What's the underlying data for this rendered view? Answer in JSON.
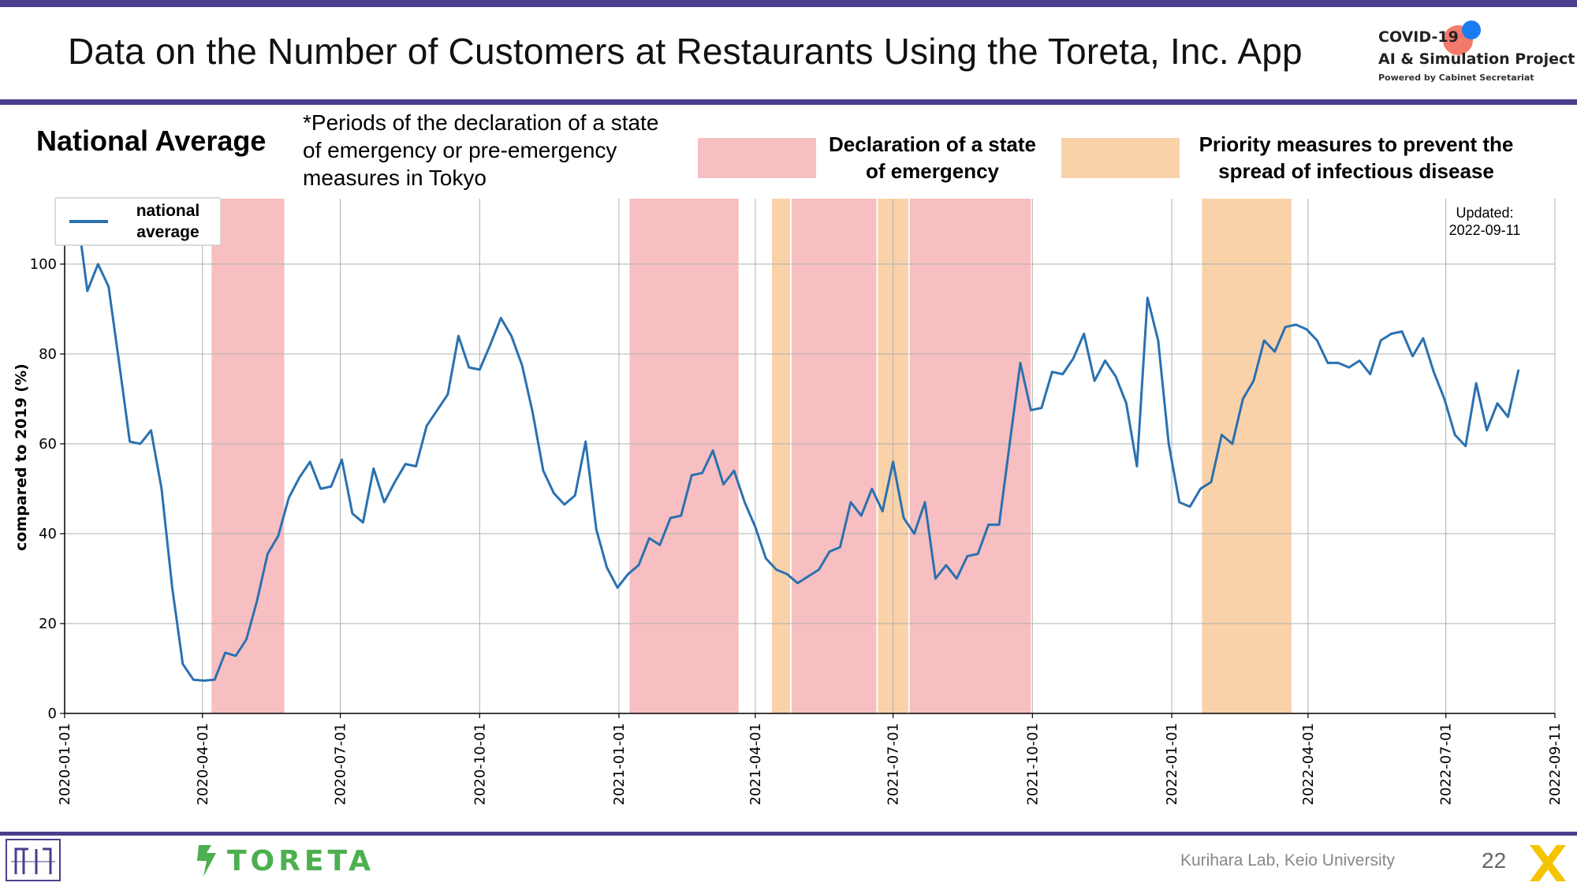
{
  "header": {
    "title": "Data on the Number of Customers at Restaurants Using the Toreta, Inc. App",
    "logo_line1": "COVID-19",
    "logo_line2": "AI & Simulation Project",
    "logo_line3": "Powered by Cabinet Secretariat"
  },
  "legend_header": {
    "section_title": "National Average",
    "note": "*Periods of the declaration of a state of emergency or pre-emergency measures in Tokyo",
    "emergency_label": "Declaration of a state of emergency",
    "priority_label": "Priority measures to prevent the spread of infectious disease",
    "emergency_color": "#f7bfc1",
    "priority_color": "#f9d2a9"
  },
  "chart_data": {
    "type": "line",
    "title": "",
    "xlabel": "",
    "ylabel": "compared to 2019 (%)",
    "ylim": [
      0,
      100
    ],
    "yticks": [
      0,
      20,
      40,
      60,
      80,
      100
    ],
    "xlim": [
      "2020-01-01",
      "2022-09-11"
    ],
    "xticks": [
      "2020-01-01",
      "2020-04-01",
      "2020-07-01",
      "2020-10-01",
      "2021-01-01",
      "2021-04-01",
      "2021-07-01",
      "2021-10-01",
      "2022-01-01",
      "2022-04-01",
      "2022-07-01",
      "2022-09-11"
    ],
    "grid": true,
    "legend": {
      "placement": "top-left",
      "line1": "national",
      "line2": "average"
    },
    "updated_line1": "Updated:",
    "updated_line2": "2022-09-11",
    "series": [
      {
        "name": "national average",
        "color": "#2a71b0",
        "points": [
          [
            "2020-01-09",
            112
          ],
          [
            "2020-01-16",
            94
          ],
          [
            "2020-01-23",
            100
          ],
          [
            "2020-01-30",
            95
          ],
          [
            "2020-02-06",
            78
          ],
          [
            "2020-02-13",
            60.5
          ],
          [
            "2020-02-20",
            60
          ],
          [
            "2020-02-27",
            63
          ],
          [
            "2020-03-05",
            50
          ],
          [
            "2020-03-12",
            28
          ],
          [
            "2020-03-19",
            11
          ],
          [
            "2020-03-26",
            7.5
          ],
          [
            "2020-04-02",
            7.3
          ],
          [
            "2020-04-09",
            7.5
          ],
          [
            "2020-04-16",
            13.5
          ],
          [
            "2020-04-23",
            12.8
          ],
          [
            "2020-04-30",
            16.5
          ],
          [
            "2020-05-07",
            25
          ],
          [
            "2020-05-14",
            35.5
          ],
          [
            "2020-05-21",
            39.5
          ],
          [
            "2020-05-28",
            48
          ],
          [
            "2020-06-04",
            52.5
          ],
          [
            "2020-06-11",
            56
          ],
          [
            "2020-06-18",
            50
          ],
          [
            "2020-06-25",
            50.5
          ],
          [
            "2020-07-02",
            56.5
          ],
          [
            "2020-07-09",
            44.5
          ],
          [
            "2020-07-16",
            42.5
          ],
          [
            "2020-07-23",
            54.5
          ],
          [
            "2020-07-30",
            47
          ],
          [
            "2020-08-06",
            51.5
          ],
          [
            "2020-08-13",
            55.5
          ],
          [
            "2020-08-20",
            55
          ],
          [
            "2020-08-27",
            64
          ],
          [
            "2020-09-03",
            67.5
          ],
          [
            "2020-09-10",
            71
          ],
          [
            "2020-09-17",
            84
          ],
          [
            "2020-09-24",
            77
          ],
          [
            "2020-10-01",
            76.5
          ],
          [
            "2020-10-08",
            82
          ],
          [
            "2020-10-15",
            88
          ],
          [
            "2020-10-22",
            84
          ],
          [
            "2020-10-29",
            77.5
          ],
          [
            "2020-11-05",
            67
          ],
          [
            "2020-11-12",
            54
          ],
          [
            "2020-11-19",
            49
          ],
          [
            "2020-11-26",
            46.5
          ],
          [
            "2020-12-03",
            48.5
          ],
          [
            "2020-12-10",
            60.5
          ],
          [
            "2020-12-17",
            41
          ],
          [
            "2020-12-24",
            32.5
          ],
          [
            "2020-12-31",
            28
          ],
          [
            "2021-01-07",
            31
          ],
          [
            "2021-01-14",
            33
          ],
          [
            "2021-01-21",
            39
          ],
          [
            "2021-01-28",
            37.5
          ],
          [
            "2021-02-04",
            43.5
          ],
          [
            "2021-02-11",
            44
          ],
          [
            "2021-02-18",
            53
          ],
          [
            "2021-02-25",
            53.5
          ],
          [
            "2021-03-04",
            58.5
          ],
          [
            "2021-03-11",
            51
          ],
          [
            "2021-03-18",
            54
          ],
          [
            "2021-03-25",
            47
          ],
          [
            "2021-04-01",
            41.5
          ],
          [
            "2021-04-08",
            34.5
          ],
          [
            "2021-04-15",
            32
          ],
          [
            "2021-04-22",
            31
          ],
          [
            "2021-04-29",
            29
          ],
          [
            "2021-05-06",
            30.5
          ],
          [
            "2021-05-13",
            32
          ],
          [
            "2021-05-20",
            36
          ],
          [
            "2021-05-27",
            37
          ],
          [
            "2021-06-03",
            47
          ],
          [
            "2021-06-10",
            44
          ],
          [
            "2021-06-17",
            50
          ],
          [
            "2021-06-24",
            45
          ],
          [
            "2021-07-01",
            56
          ],
          [
            "2021-07-08",
            43.5
          ],
          [
            "2021-07-15",
            40
          ],
          [
            "2021-07-22",
            47
          ],
          [
            "2021-07-29",
            30
          ],
          [
            "2021-08-05",
            33
          ],
          [
            "2021-08-12",
            30
          ],
          [
            "2021-08-19",
            35
          ],
          [
            "2021-08-26",
            35.5
          ],
          [
            "2021-09-02",
            42
          ],
          [
            "2021-09-09",
            42
          ],
          [
            "2021-09-16",
            60
          ],
          [
            "2021-09-23",
            78
          ],
          [
            "2021-09-30",
            67.5
          ],
          [
            "2021-10-07",
            68
          ],
          [
            "2021-10-14",
            76
          ],
          [
            "2021-10-21",
            75.5
          ],
          [
            "2021-10-28",
            79
          ],
          [
            "2021-11-04",
            84.5
          ],
          [
            "2021-11-11",
            74
          ],
          [
            "2021-11-18",
            78.5
          ],
          [
            "2021-11-25",
            75
          ],
          [
            "2021-12-02",
            69
          ],
          [
            "2021-12-09",
            55
          ],
          [
            "2021-12-16",
            92.5
          ],
          [
            "2021-12-23",
            83
          ],
          [
            "2021-12-30",
            60
          ],
          [
            "2022-01-06",
            47
          ],
          [
            "2022-01-13",
            46
          ],
          [
            "2022-01-20",
            50
          ],
          [
            "2022-01-27",
            51.5
          ],
          [
            "2022-02-03",
            62
          ],
          [
            "2022-02-10",
            60
          ],
          [
            "2022-02-17",
            70
          ],
          [
            "2022-02-24",
            74
          ],
          [
            "2022-03-03",
            83
          ],
          [
            "2022-03-10",
            80.5
          ],
          [
            "2022-03-17",
            86
          ],
          [
            "2022-03-24",
            86.5
          ],
          [
            "2022-03-31",
            85.5
          ],
          [
            "2022-04-07",
            83
          ],
          [
            "2022-04-14",
            78
          ],
          [
            "2022-04-21",
            78
          ],
          [
            "2022-04-28",
            77
          ],
          [
            "2022-05-05",
            78.5
          ],
          [
            "2022-05-12",
            75.5
          ],
          [
            "2022-05-19",
            83
          ],
          [
            "2022-05-26",
            84.5
          ],
          [
            "2022-06-02",
            85
          ],
          [
            "2022-06-09",
            79.5
          ],
          [
            "2022-06-16",
            83.5
          ],
          [
            "2022-06-23",
            76
          ],
          [
            "2022-06-30",
            70
          ],
          [
            "2022-07-07",
            62
          ],
          [
            "2022-07-14",
            59.5
          ],
          [
            "2022-07-21",
            73.5
          ],
          [
            "2022-07-28",
            63
          ],
          [
            "2022-08-04",
            69
          ],
          [
            "2022-08-11",
            66
          ],
          [
            "2022-08-18",
            76.5
          ]
        ]
      }
    ],
    "shaded_periods": [
      {
        "kind": "emergency",
        "start": "2020-04-07",
        "end": "2020-05-25"
      },
      {
        "kind": "emergency",
        "start": "2021-01-08",
        "end": "2021-03-21"
      },
      {
        "kind": "priority",
        "start": "2021-04-12",
        "end": "2021-04-24"
      },
      {
        "kind": "emergency",
        "start": "2021-04-25",
        "end": "2021-06-20"
      },
      {
        "kind": "priority",
        "start": "2021-06-21",
        "end": "2021-07-11"
      },
      {
        "kind": "emergency",
        "start": "2021-07-12",
        "end": "2021-09-30"
      },
      {
        "kind": "priority",
        "start": "2022-01-21",
        "end": "2022-03-21"
      }
    ]
  },
  "footer": {
    "credit": "Kurihara Lab, Keio University",
    "page_number": "22",
    "partner_logo_text": "TORETA"
  }
}
